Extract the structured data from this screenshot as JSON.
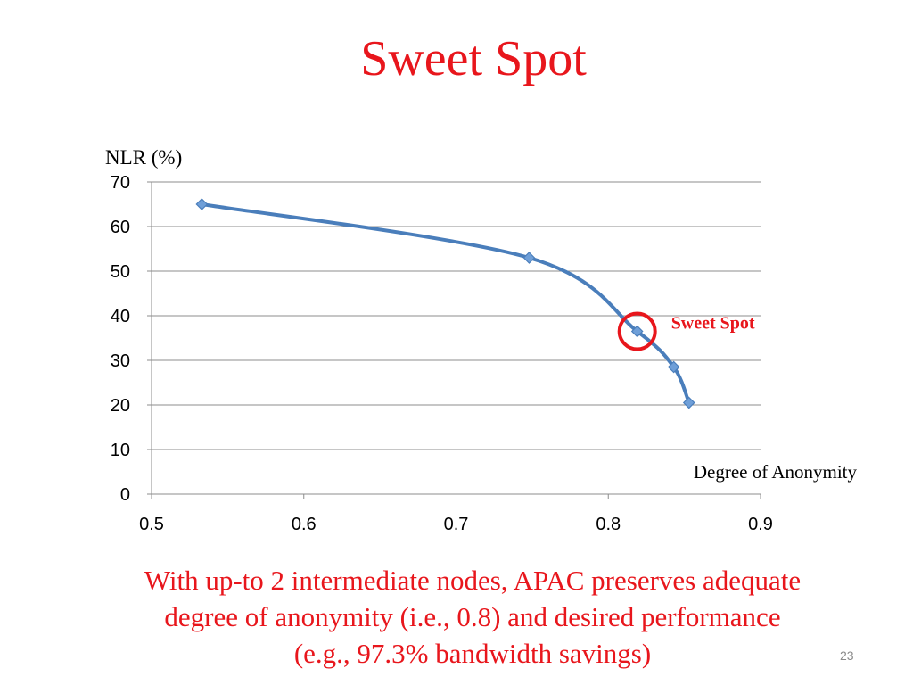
{
  "slide": {
    "title": "Sweet Spot",
    "caption_lines": [
      "With up-to 2 intermediate nodes, APAC preserves adequate",
      "degree of anonymity (i.e., 0.8) and desired performance",
      "(e.g., 97.3% bandwidth savings)"
    ],
    "page_number": "23"
  },
  "colors": {
    "title": "#e8161c",
    "series_line": "#4a7ebb",
    "marker_fill": "#6f9fd8",
    "highlight": "#e8161c",
    "grid": "#8c8c8c"
  },
  "chart_data": {
    "type": "line",
    "ylabel": "NLR (%)",
    "xlabel": "Degree of Anonymity",
    "xlim": [
      0.5,
      0.9
    ],
    "ylim": [
      0,
      70
    ],
    "x_ticks": [
      "0.5",
      "0.6",
      "0.7",
      "0.8",
      "0.9"
    ],
    "y_ticks": [
      "0",
      "10",
      "20",
      "30",
      "40",
      "50",
      "60",
      "70"
    ],
    "grid": true,
    "smooth": true,
    "series": [
      {
        "x": [
          0.533,
          0.748,
          0.819,
          0.843,
          0.853
        ],
        "y": [
          65,
          53,
          36.5,
          28.5,
          20.5
        ]
      }
    ],
    "annotation": {
      "label": "Sweet Spot",
      "x": 0.819,
      "y": 36.5
    }
  }
}
